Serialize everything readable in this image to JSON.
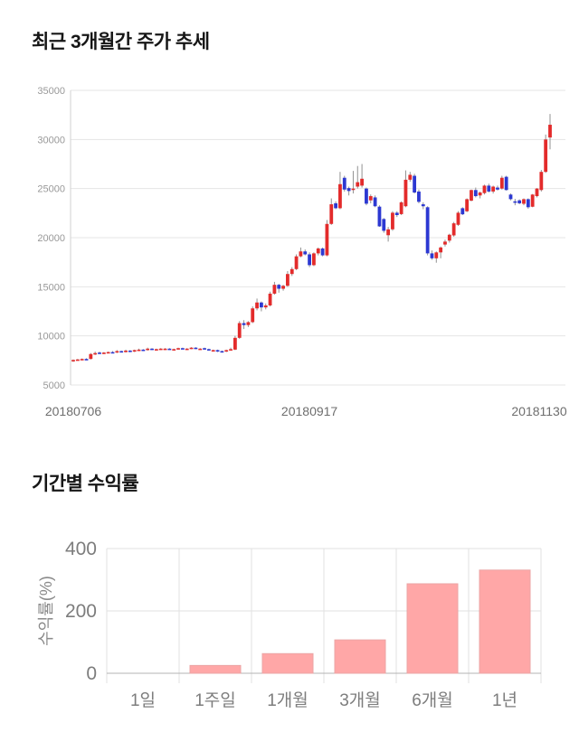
{
  "page": {
    "background": "#ffffff"
  },
  "chart_data": [
    {
      "type": "candlestick",
      "title": "최근 3개월간 주가 추세",
      "xlabel": "",
      "ylabel": "",
      "ylim": [
        5000,
        35000
      ],
      "y_ticks": [
        35000,
        30000,
        25000,
        20000,
        15000,
        10000,
        5000
      ],
      "x_tick_labels": [
        "20180706",
        "20180917",
        "20181130"
      ],
      "x_tick_indices": [
        0,
        54,
        109
      ],
      "grid": true,
      "legend": "none",
      "up_color": "#e32b2b",
      "down_color": "#2c38d2",
      "wick_color": "#919191",
      "grid_color": "#e4e4e4",
      "axis_color": "#d2d2d2",
      "y_tick_color": "#999999",
      "x_tick_color": "#6e6e6e",
      "candles_format": "open_high_low_close",
      "candles": [
        [
          7450,
          7600,
          7350,
          7550
        ],
        [
          7550,
          7650,
          7500,
          7600
        ],
        [
          7600,
          7700,
          7550,
          7650
        ],
        [
          7650,
          7720,
          7550,
          7620
        ],
        [
          7650,
          8250,
          7600,
          8150
        ],
        [
          8150,
          8400,
          8050,
          8250
        ],
        [
          8300,
          8400,
          8150,
          8200
        ],
        [
          8200,
          8350,
          8150,
          8300
        ],
        [
          8300,
          8400,
          8250,
          8350
        ],
        [
          8350,
          8450,
          8250,
          8300
        ],
        [
          8300,
          8550,
          8250,
          8450
        ],
        [
          8450,
          8500,
          8300,
          8350
        ],
        [
          8350,
          8600,
          8300,
          8500
        ],
        [
          8500,
          8550,
          8350,
          8400
        ],
        [
          8400,
          8600,
          8350,
          8550
        ],
        [
          8550,
          8700,
          8500,
          8600
        ],
        [
          8600,
          8650,
          8500,
          8550
        ],
        [
          8550,
          8800,
          8500,
          8700
        ],
        [
          8700,
          8750,
          8600,
          8650
        ],
        [
          8650,
          8700,
          8550,
          8650
        ],
        [
          8650,
          8750,
          8600,
          8700
        ],
        [
          8700,
          8750,
          8600,
          8700
        ],
        [
          8700,
          8750,
          8600,
          8650
        ],
        [
          8650,
          8700,
          8550,
          8650
        ],
        [
          8650,
          8800,
          8600,
          8750
        ],
        [
          8750,
          8800,
          8650,
          8700
        ],
        [
          8700,
          8750,
          8600,
          8700
        ],
        [
          8700,
          8850,
          8650,
          8800
        ],
        [
          8800,
          8850,
          8650,
          8700
        ],
        [
          8700,
          8750,
          8600,
          8700
        ],
        [
          8750,
          8800,
          8600,
          8650
        ],
        [
          8650,
          8700,
          8500,
          8550
        ],
        [
          8550,
          8600,
          8450,
          8550
        ],
        [
          8550,
          8600,
          8350,
          8450
        ],
        [
          8450,
          8500,
          8300,
          8400
        ],
        [
          8400,
          8600,
          8350,
          8550
        ],
        [
          8550,
          8800,
          8500,
          8650
        ],
        [
          8600,
          10000,
          8550,
          9800
        ],
        [
          9800,
          11500,
          9700,
          11300
        ],
        [
          11300,
          11600,
          10700,
          11100
        ],
        [
          11100,
          11500,
          10900,
          11400
        ],
        [
          11400,
          13000,
          11300,
          12800
        ],
        [
          12800,
          13800,
          12600,
          13400
        ],
        [
          13400,
          13500,
          12500,
          12900
        ],
        [
          12900,
          13300,
          12700,
          13100
        ],
        [
          13100,
          14500,
          13000,
          14300
        ],
        [
          14300,
          15500,
          14200,
          15200
        ],
        [
          15200,
          15300,
          14400,
          14800
        ],
        [
          14800,
          15200,
          14600,
          15100
        ],
        [
          15100,
          16600,
          15000,
          16300
        ],
        [
          16300,
          17000,
          16100,
          16800
        ],
        [
          16800,
          18300,
          16700,
          18100
        ],
        [
          18100,
          19000,
          18000,
          18600
        ],
        [
          18600,
          18800,
          18200,
          18300
        ],
        [
          18300,
          18500,
          17000,
          17200
        ],
        [
          17200,
          18500,
          17100,
          18400
        ],
        [
          18400,
          19000,
          18200,
          18900
        ],
        [
          18900,
          19000,
          18100,
          18200
        ],
        [
          18200,
          21800,
          18100,
          21400
        ],
        [
          21400,
          24000,
          21300,
          23400
        ],
        [
          23500,
          23700,
          22900,
          23000
        ],
        [
          23000,
          26700,
          22900,
          25450
        ],
        [
          26100,
          26300,
          24700,
          24900
        ],
        [
          25050,
          25200,
          24300,
          24750
        ],
        [
          24900,
          26800,
          24500,
          25000
        ],
        [
          25200,
          27300,
          25000,
          25650
        ],
        [
          25300,
          27500,
          25100,
          26000
        ],
        [
          25000,
          25100,
          23300,
          23460
        ],
        [
          23800,
          24400,
          23500,
          24230
        ],
        [
          24100,
          24300,
          23100,
          23200
        ],
        [
          23160,
          23300,
          21100,
          21150
        ],
        [
          21900,
          22000,
          20500,
          20700
        ],
        [
          20250,
          21100,
          19600,
          20850
        ],
        [
          20850,
          22700,
          20700,
          22540
        ],
        [
          22540,
          22700,
          22100,
          22300
        ],
        [
          22400,
          23700,
          22300,
          23600
        ],
        [
          23200,
          26850,
          23100,
          25900
        ],
        [
          25900,
          26700,
          25700,
          26400
        ],
        [
          26300,
          26500,
          24500,
          24600
        ],
        [
          24700,
          24900,
          23500,
          23650
        ],
        [
          23400,
          23600,
          22900,
          23200
        ],
        [
          23100,
          23200,
          18200,
          18400
        ],
        [
          18400,
          18700,
          17750,
          17900
        ],
        [
          17900,
          18600,
          17450,
          18500
        ],
        [
          18500,
          19100,
          17900,
          19000
        ],
        [
          19300,
          19800,
          19100,
          19600
        ],
        [
          19700,
          20400,
          19500,
          20300
        ],
        [
          20230,
          21600,
          20100,
          21460
        ],
        [
          21310,
          22700,
          21200,
          22540
        ],
        [
          23000,
          23100,
          22300,
          22380
        ],
        [
          22690,
          24000,
          22600,
          23920
        ],
        [
          23770,
          24900,
          23700,
          24850
        ],
        [
          24850,
          25100,
          24100,
          24230
        ],
        [
          24300,
          24700,
          24000,
          24600
        ],
        [
          24540,
          25400,
          24400,
          25300
        ],
        [
          25300,
          25500,
          24600,
          24700
        ],
        [
          24700,
          25300,
          24500,
          25200
        ],
        [
          25100,
          25300,
          24800,
          24900
        ],
        [
          25000,
          26300,
          24900,
          26100
        ],
        [
          26200,
          26300,
          24800,
          24850
        ],
        [
          24390,
          24500,
          23800,
          23920
        ],
        [
          23700,
          23950,
          23300,
          23600
        ],
        [
          23800,
          23900,
          23400,
          23500
        ],
        [
          23450,
          24000,
          23300,
          23920
        ],
        [
          23920,
          24000,
          22950,
          23100
        ],
        [
          23150,
          24450,
          23100,
          24390
        ],
        [
          24230,
          25050,
          24100,
          25000
        ],
        [
          24850,
          26900,
          24700,
          26700
        ],
        [
          26700,
          30500,
          26600,
          30000
        ],
        [
          30200,
          32600,
          29000,
          31500
        ]
      ]
    },
    {
      "type": "bar",
      "title": "기간별 수익률",
      "xlabel": "",
      "ylabel": "수익률(%)",
      "categories": [
        "1일",
        "1주일",
        "1개월",
        "3개월",
        "6개월",
        "1년"
      ],
      "values": [
        0,
        25,
        63,
        107,
        287,
        331
      ],
      "ylim": [
        0,
        400
      ],
      "y_ticks": [
        400,
        200,
        0
      ],
      "grid": true,
      "legend": "none",
      "bar_fill": "#ffa7a7",
      "bar_stroke": "#eba4a4",
      "grid_color": "#e2e2e2",
      "zero_line_color": "#b3b3b3",
      "tick_color": "#7d7d7d",
      "ylabel_color": "#8a8a8a"
    }
  ]
}
